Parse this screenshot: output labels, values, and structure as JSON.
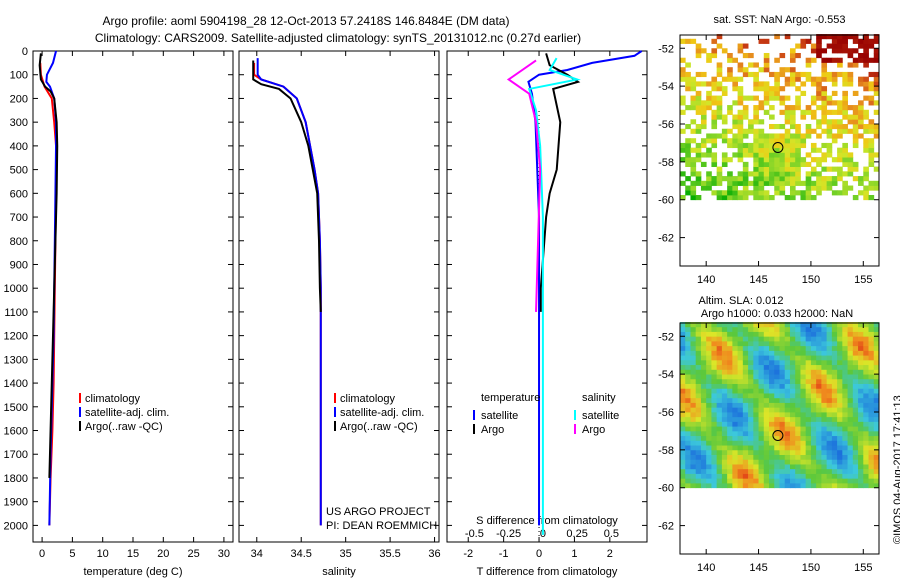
{
  "header": {
    "line1": "Argo profile: aoml 5904198_28 12-Oct-2013 57.2418S 146.8484E (DM data)",
    "line2": "Climatology: CARS2009. Satellite-adjusted climatology: synTS_20131012.nc (0.27d earlier)"
  },
  "colors": {
    "argo": "#000000",
    "satellite": "#0000ff",
    "climatology": "#ff0000",
    "salinity_sat": "#00ffff",
    "salinity_argo": "#ff00ff"
  },
  "chart_data": [
    {
      "id": "temperature",
      "type": "line",
      "xlabel": "temperature (deg C)",
      "ylabel": "",
      "xlim": [
        -1.5,
        31.5
      ],
      "ylim": [
        2070,
        0
      ],
      "xticks": [
        0,
        5,
        10,
        15,
        20,
        25,
        30
      ],
      "yticks": [
        0,
        100,
        200,
        300,
        400,
        500,
        600,
        700,
        800,
        900,
        1000,
        1100,
        1200,
        1300,
        1400,
        1500,
        1600,
        1700,
        1800,
        1900,
        2000
      ],
      "legend": [
        "climatology",
        "satellite-adj. clim.",
        "Argo(..raw -QC)"
      ],
      "series": [
        {
          "name": "climatology",
          "color": "#ff0000",
          "x": [
            -0.3,
            -0.2,
            0.4,
            1.6,
            2.0,
            2.3,
            2.3,
            2.2,
            2.1,
            2.0,
            1.9,
            1.7,
            1.4,
            1.2
          ],
          "y": [
            50,
            100,
            150,
            200,
            300,
            400,
            600,
            800,
            1000,
            1200,
            1400,
            1600,
            1800,
            2000
          ]
        },
        {
          "name": "satellite-adj. clim.",
          "color": "#0000ff",
          "x": [
            2.3,
            1.8,
            0.8,
            0.7,
            1.3,
            2.0,
            2.3,
            2.3,
            2.2,
            2.1,
            2.0,
            1.9,
            1.7,
            1.4,
            1.2
          ],
          "y": [
            0,
            50,
            100,
            130,
            150,
            200,
            300,
            400,
            600,
            800,
            1000,
            1200,
            1400,
            1700,
            2000
          ]
        },
        {
          "name": "Argo(..raw -QC)",
          "color": "#000000",
          "x": [
            -0.2,
            -0.4,
            -0.2,
            0.5,
            1.4,
            2.0,
            2.4,
            2.5,
            2.4,
            2.2,
            2.0,
            1.8,
            1.6,
            1.4,
            1.2
          ],
          "y": [
            10,
            60,
            120,
            150,
            170,
            200,
            300,
            400,
            600,
            800,
            1000,
            1200,
            1400,
            1600,
            1800
          ]
        }
      ]
    },
    {
      "id": "salinity",
      "type": "line",
      "xlabel": "salinity",
      "xlim": [
        33.8,
        36.05
      ],
      "ylim": [
        2070,
        0
      ],
      "xticks": [
        34,
        34.5,
        35,
        35.5,
        36
      ],
      "legend": [
        "climatology",
        "satellite-adj. clim.",
        "Argo(..raw -QC)"
      ],
      "annotation": [
        "US ARGO PROJECT",
        "PI: DEAN ROEMMICH"
      ],
      "series": [
        {
          "name": "climatology",
          "color": "#ff0000",
          "x": [
            33.97,
            33.97,
            34.05,
            34.3,
            34.45,
            34.55,
            34.6,
            34.65,
            34.69,
            34.71,
            34.72,
            34.72,
            34.72,
            34.72
          ],
          "y": [
            50,
            100,
            120,
            150,
            200,
            300,
            400,
            500,
            600,
            800,
            1000,
            1400,
            1700,
            2000
          ]
        },
        {
          "name": "satellite-adj. clim.",
          "color": "#0000ff",
          "x": [
            34.01,
            34.01,
            34.05,
            34.3,
            34.45,
            34.55,
            34.6,
            34.65,
            34.69,
            34.71,
            34.72,
            34.72,
            34.72,
            34.72
          ],
          "y": [
            30,
            100,
            120,
            150,
            200,
            300,
            400,
            500,
            600,
            800,
            1000,
            1400,
            1700,
            2000
          ]
        },
        {
          "name": "Argo(..raw -QC)",
          "color": "#000000",
          "x": [
            33.96,
            33.96,
            34.05,
            34.25,
            34.38,
            34.5,
            34.58,
            34.63,
            34.68,
            34.7,
            34.71,
            34.72
          ],
          "y": [
            40,
            120,
            140,
            160,
            200,
            300,
            400,
            500,
            600,
            800,
            1000,
            1100
          ]
        }
      ]
    },
    {
      "id": "difference",
      "type": "line",
      "xlabel": "T difference from climatology",
      "xlabel_top": "S difference from climatology",
      "xlim": [
        -2.6,
        3.05
      ],
      "xlim_salinity": [
        -0.7,
        0.76
      ],
      "ylim": [
        2070,
        0
      ],
      "xticks": [
        -2,
        -1,
        0,
        1,
        2
      ],
      "xticks_salinity": [
        -0.5,
        -0.25,
        0,
        0.25,
        0.5
      ],
      "legend_title_t": "temperature",
      "legend_title_s": "salinity",
      "legend_t": [
        "satellite",
        "Argo"
      ],
      "legend_s": [
        "satellite",
        "Argo"
      ],
      "series": [
        {
          "name": "T satellite",
          "color": "#0000ff",
          "x": [
            2.9,
            2.7,
            1.5,
            0.8,
            0.0,
            -0.3,
            -0.2,
            -0.1,
            -0.05,
            0.0,
            0.0,
            0.0,
            0.0,
            0.0,
            0.0
          ],
          "y": [
            0,
            20,
            50,
            80,
            100,
            130,
            180,
            300,
            500,
            700,
            900,
            1200,
            1500,
            1800,
            2000
          ]
        },
        {
          "name": "T Argo",
          "color": "#000000",
          "x": [
            0.2,
            0.3,
            0.8,
            1.1,
            0.4,
            0.6,
            0.5,
            0.3,
            0.2,
            0.15,
            0.1,
            0.05,
            0.05
          ],
          "y": [
            10,
            60,
            100,
            130,
            160,
            300,
            500,
            600,
            700,
            800,
            900,
            1000,
            1100
          ]
        },
        {
          "name": "S satellite",
          "color": "#00ffff",
          "x": [
            0.1,
            0.05,
            0.25,
            -0.1,
            -0.05,
            -0.02,
            0.0,
            0.0,
            0.0,
            0.0,
            0.0,
            0.0
          ],
          "y": [
            30,
            80,
            120,
            160,
            250,
            400,
            700,
            1000,
            1300,
            1600,
            1900,
            2040
          ]
        },
        {
          "name": "S Argo",
          "color": "#ff00ff",
          "x": [
            -0.05,
            -0.25,
            -0.1,
            -0.05,
            -0.02,
            -0.03,
            -0.04,
            -0.05
          ],
          "y": [
            40,
            120,
            180,
            300,
            500,
            700,
            900,
            1100
          ]
        }
      ]
    },
    {
      "id": "sst_map",
      "type": "heatmap",
      "title": "sat. SST: NaN Argo: -0.553",
      "xlim": [
        137.5,
        156.5
      ],
      "ylim": [
        -63.5,
        -51.3
      ],
      "xticks": [
        140,
        145,
        150,
        155
      ],
      "yticks": [
        -52,
        -54,
        -56,
        -58,
        -60,
        -62
      ],
      "marker": {
        "lon": 146.8484,
        "lat": -57.2418
      }
    },
    {
      "id": "sla_map",
      "type": "heatmap",
      "title": "Altim. SLA: 0.012",
      "subtitle": "Argo h1000: 0.033 h2000: NaN",
      "xlim": [
        137.5,
        156.5
      ],
      "ylim": [
        -63.5,
        -51.3
      ],
      "xticks": [
        140,
        145,
        150,
        155
      ],
      "yticks": [
        -52,
        -54,
        -56,
        -58,
        -60,
        -62
      ],
      "marker": {
        "lon": 146.8484,
        "lat": -57.2418
      }
    }
  ],
  "watermark": "©IMOS 04-Aug-2017 17:41:13"
}
